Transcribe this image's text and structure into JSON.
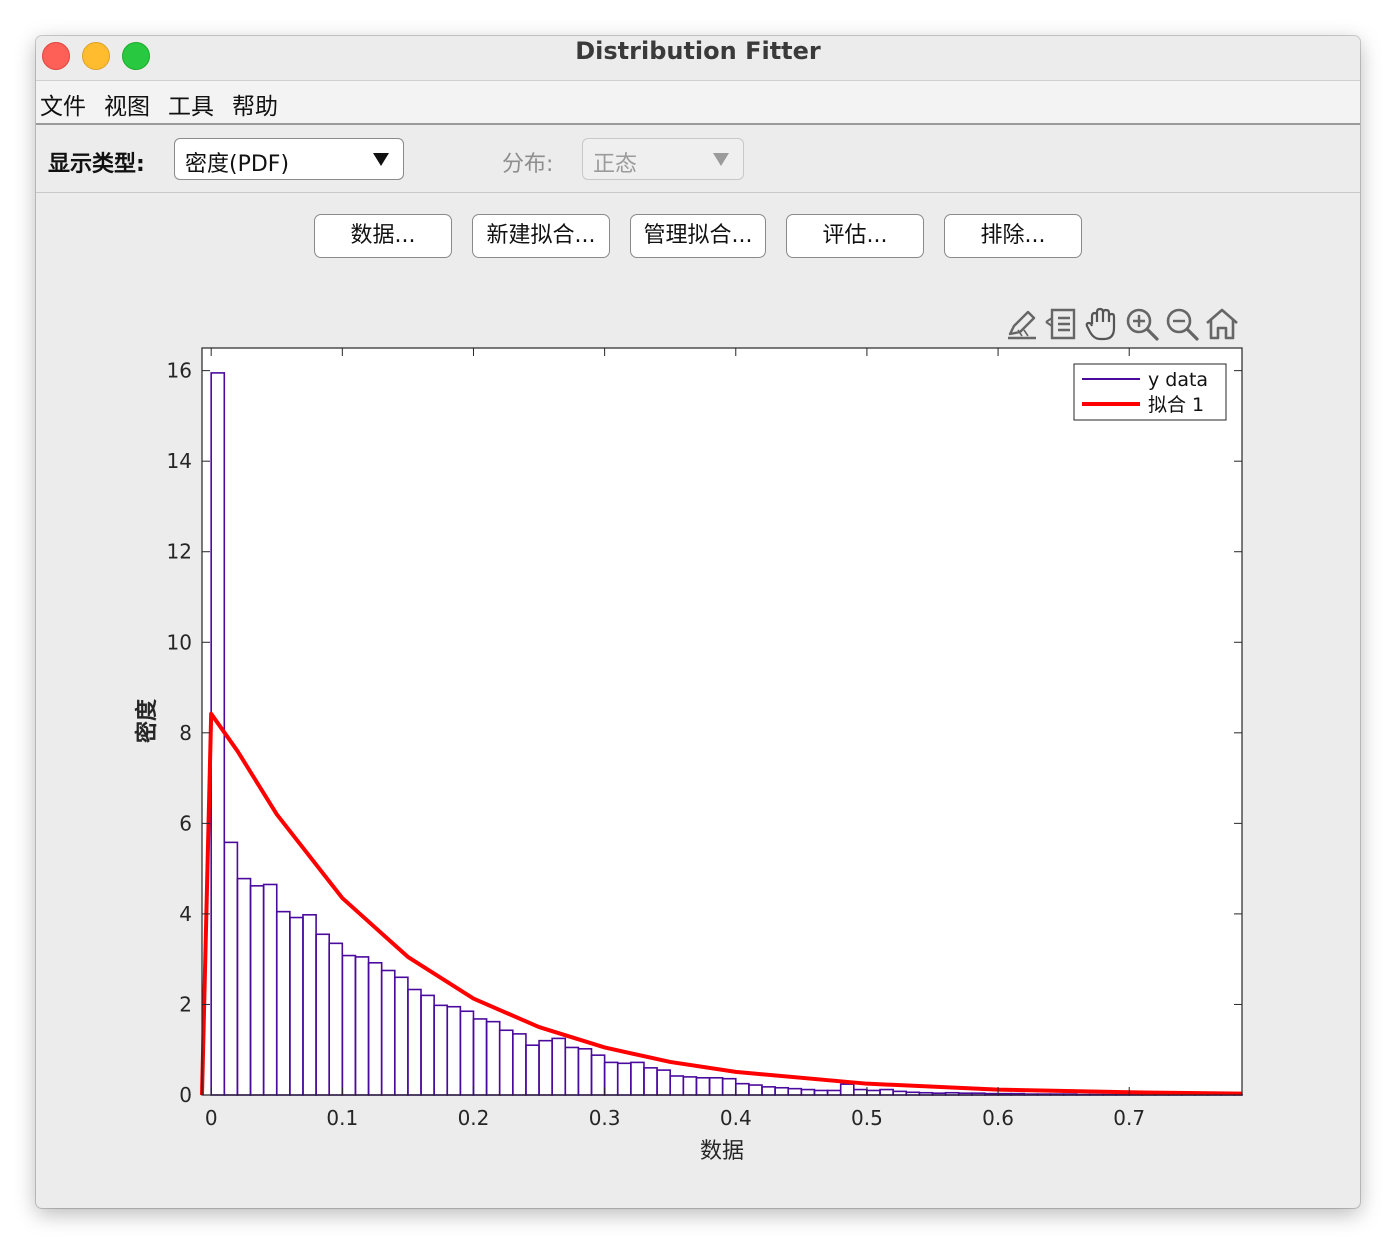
{
  "window": {
    "title": "Distribution Fitter"
  },
  "menu": {
    "items": [
      "文件",
      "视图",
      "工具",
      "帮助"
    ]
  },
  "controls": {
    "display_type_label": "显示类型:",
    "display_type_value": "密度(PDF)",
    "distribution_label": "分布:",
    "distribution_value": "正态"
  },
  "buttons": [
    "数据...",
    "新建拟合...",
    "管理拟合...",
    "评估...",
    "排除..."
  ],
  "axes_toolbar": [
    "edit-plot-icon",
    "legend-toggle-icon",
    "pan-hand-icon",
    "zoom-in-icon",
    "zoom-out-icon",
    "home-icon"
  ],
  "chart_data": {
    "type": "bar",
    "xlabel": "数据",
    "ylabel": "密度",
    "xlim": [
      -0.007,
      0.786
    ],
    "ylim": [
      0,
      16.5
    ],
    "xticks": [
      0,
      0.1,
      0.2,
      0.3,
      0.4,
      0.5,
      0.6,
      0.7
    ],
    "yticks": [
      0,
      2,
      4,
      6,
      8,
      10,
      12,
      14,
      16
    ],
    "legend_position": "top-right",
    "colors": {
      "histogram": "#4b0a9e",
      "fit": "#ff0000"
    },
    "series": [
      {
        "name": "y data",
        "kind": "histogram",
        "bin_start": 0,
        "bin_width": 0.01,
        "values": [
          15.95,
          5.58,
          4.78,
          4.62,
          4.65,
          4.05,
          3.92,
          3.98,
          3.55,
          3.35,
          3.08,
          3.05,
          2.92,
          2.75,
          2.6,
          2.33,
          2.2,
          1.98,
          1.95,
          1.85,
          1.68,
          1.62,
          1.43,
          1.35,
          1.1,
          1.2,
          1.25,
          1.05,
          1.02,
          0.88,
          0.72,
          0.7,
          0.72,
          0.6,
          0.55,
          0.42,
          0.4,
          0.38,
          0.38,
          0.36,
          0.25,
          0.22,
          0.18,
          0.16,
          0.14,
          0.12,
          0.1,
          0.1,
          0.24,
          0.12,
          0.1,
          0.12,
          0.08,
          0.06,
          0.05,
          0.04,
          0.05,
          0.04,
          0.04,
          0.03,
          0.03,
          0.03,
          0.02,
          0.02,
          0.02,
          0.02,
          0.01,
          0.01,
          0.01,
          0.01,
          0.01,
          0.01,
          0.01,
          0.01,
          0.01,
          0.01,
          0.01,
          0.01,
          0.01
        ]
      },
      {
        "name": "拟合 1",
        "kind": "line",
        "x": [
          -0.007,
          0.0,
          0.02,
          0.05,
          0.1,
          0.15,
          0.2,
          0.25,
          0.3,
          0.35,
          0.4,
          0.5,
          0.6,
          0.7,
          0.786
        ],
        "values": [
          0,
          8.42,
          7.6,
          6.2,
          4.35,
          3.05,
          2.13,
          1.5,
          1.05,
          0.73,
          0.51,
          0.25,
          0.12,
          0.06,
          0.03
        ]
      }
    ]
  }
}
